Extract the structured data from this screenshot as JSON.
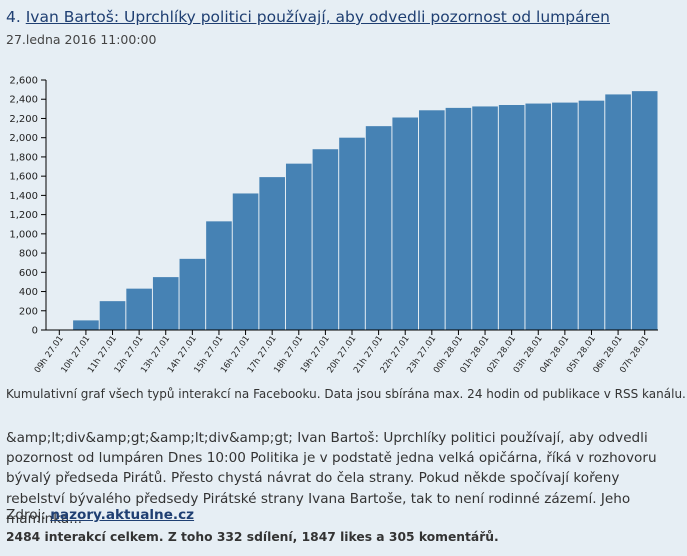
{
  "headline": {
    "number": "4.",
    "title": "Ivan Bartoš: Uprchlíky politici používají, aby odvedli pozornost od lumpáren"
  },
  "date": "27.ledna 2016 11:00:00",
  "chart_data": {
    "type": "bar",
    "categories": [
      "09h 27.01",
      "10h 27.01",
      "11h 27.01",
      "12h 27.01",
      "13h 27.01",
      "14h 27.01",
      "15h 27.01",
      "16h 27.01",
      "17h 27.01",
      "18h 27.01",
      "19h 27.01",
      "20h 27.01",
      "21h 27.01",
      "22h 27.01",
      "23h 27.01",
      "00h 28.01",
      "01h 28.01",
      "02h 28.01",
      "03h 28.01",
      "04h 28.01",
      "05h 28.01",
      "06h 28.01",
      "07h 28.01"
    ],
    "values": [
      5,
      100,
      300,
      430,
      550,
      740,
      1130,
      1420,
      1590,
      1730,
      1880,
      2000,
      2120,
      2210,
      2285,
      2310,
      2325,
      2340,
      2355,
      2365,
      2385,
      2450,
      2484
    ],
    "yticks": [
      "0",
      "200",
      "400",
      "600",
      "800",
      "1,000",
      "1,200",
      "1,400",
      "1,600",
      "1,800",
      "2,000",
      "2,200",
      "2,400",
      "2,600"
    ],
    "ylim": [
      0,
      2600
    ],
    "bar_color": "#4682b4",
    "grid": false
  },
  "caption": "Kumulativní graf všech typů interakcí na Facebooku. Data jsou sbírána max. 24 hodin od publikace v RSS kanálu.",
  "article_text": "&amp;lt;div&amp;gt;&amp;lt;div&amp;gt; Ivan Bartoš: Uprchlíky politici používají, aby odvedli pozornost od lumpáren Dnes 10:00 Politika je v podstatě jedna velká opičárna, říká v rozhovoru bývalý předseda Pirátů. Přesto chystá návrat do čela strany. Pokud někde spočívají kořeny rebelství bývalého předsedy Pirátské strany Ivana Bartoše, tak to není rodinné zázemí. Jeho maminka...",
  "source": {
    "label": "Zdroj:",
    "link": "nazory.aktualne.cz"
  },
  "summary": "2484 interakcí celkem. Z toho 332 sdílení, 1847 likes a 305 komentářů."
}
